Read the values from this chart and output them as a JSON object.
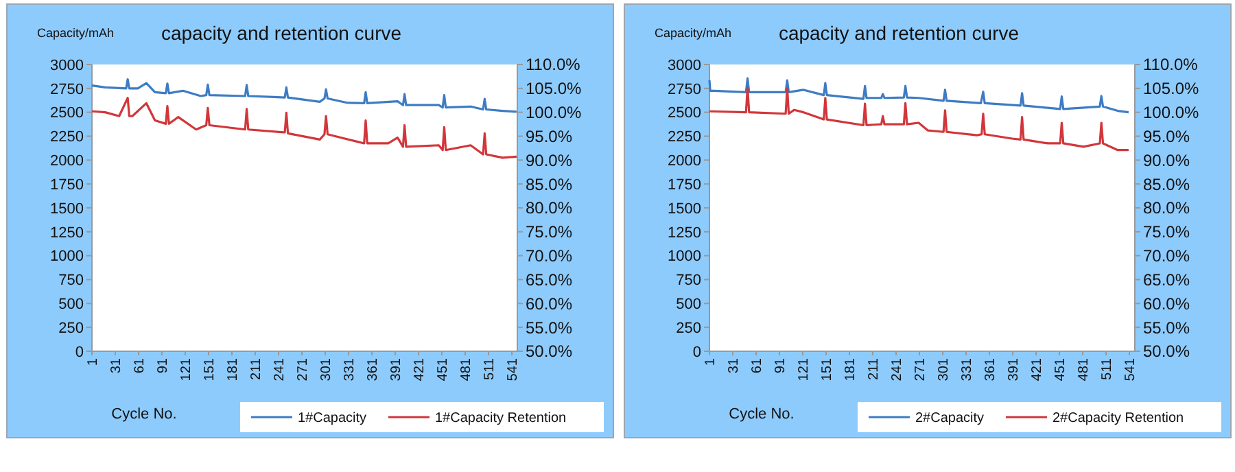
{
  "chart_data": [
    {
      "type": "line",
      "title": "capacity and retention curve",
      "ylabel": "Capacity/mAh",
      "xlabel": "Cycle No.",
      "xlim": [
        1,
        548
      ],
      "xticks": [
        1,
        31,
        61,
        91,
        121,
        151,
        181,
        211,
        241,
        271,
        301,
        331,
        361,
        391,
        421,
        451,
        481,
        511,
        541
      ],
      "ylim": [
        0,
        3000
      ],
      "yticks": [
        0,
        250,
        500,
        750,
        1000,
        1250,
        1500,
        1750,
        2000,
        2250,
        2500,
        2750,
        3000
      ],
      "y2lim": [
        50,
        110
      ],
      "y2ticks": [
        {
          "value": 50,
          "label": "50.0%"
        },
        {
          "value": 55,
          "label": "55.0%"
        },
        {
          "value": 60,
          "label": "60.0%"
        },
        {
          "value": 65,
          "label": "65.0%"
        },
        {
          "value": 70,
          "label": "70.0%"
        },
        {
          "value": 75,
          "label": "75.0%"
        },
        {
          "value": 80,
          "label": "80.0%"
        },
        {
          "value": 85,
          "label": "85.0%"
        },
        {
          "value": 90,
          "label": "90.0%"
        },
        {
          "value": 95,
          "label": "95.0%"
        },
        {
          "value": 100,
          "label": "100.0%"
        },
        {
          "value": 105,
          "label": "105.0%"
        },
        {
          "value": 110,
          "label": "110.0%"
        }
      ],
      "grid": false,
      "legend": "bottom right",
      "marker": "none",
      "line_style": "solid",
      "series": [
        {
          "name": "1#Capacity",
          "color": "#3d7cc4",
          "x": [
            1,
            18,
            45,
            47,
            49,
            60,
            71,
            82,
            96,
            98,
            100,
            118,
            141,
            148,
            150,
            152,
            198,
            200,
            202,
            235,
            249,
            251,
            253,
            294,
            300,
            302,
            304,
            329,
            351,
            353,
            355,
            394,
            401,
            403,
            405,
            447,
            452,
            454,
            456,
            488,
            504,
            506,
            508,
            529,
            547
          ],
          "values": [
            2780,
            2760,
            2750,
            2845,
            2750,
            2750,
            2805,
            2710,
            2700,
            2800,
            2700,
            2725,
            2670,
            2680,
            2790,
            2680,
            2670,
            2785,
            2670,
            2660,
            2655,
            2760,
            2655,
            2610,
            2645,
            2740,
            2645,
            2600,
            2595,
            2710,
            2595,
            2615,
            2575,
            2690,
            2575,
            2575,
            2550,
            2680,
            2550,
            2560,
            2530,
            2640,
            2530,
            2515,
            2505
          ]
        },
        {
          "name": "1#Capacity Retention",
          "color": "#d2363a",
          "axis": "y2",
          "x": [
            1,
            18,
            36,
            47,
            49,
            53,
            71,
            82,
            96,
            98,
            100,
            112,
            135,
            148,
            150,
            152,
            198,
            200,
            202,
            247,
            249,
            251,
            253,
            294,
            300,
            302,
            304,
            341,
            351,
            353,
            355,
            382,
            394,
            401,
            403,
            405,
            447,
            452,
            454,
            456,
            488,
            504,
            506,
            508,
            529,
            547
          ],
          "values": [
            100.2,
            100,
            99.2,
            103.0,
            99.2,
            99.2,
            101.9,
            98.3,
            97.6,
            101.3,
            97.6,
            99,
            96.4,
            97.3,
            100.9,
            97.3,
            96.4,
            100.7,
            96.4,
            95.8,
            95.8,
            99.9,
            95.6,
            94.3,
            95.4,
            99.2,
            95.4,
            93.9,
            93.5,
            98.3,
            93.5,
            93.5,
            94.7,
            92.8,
            97.3,
            92.8,
            93.1,
            92.1,
            96.9,
            92.1,
            93.1,
            91.2,
            95.6,
            91.2,
            90.5,
            90.7
          ]
        }
      ]
    },
    {
      "type": "line",
      "title": "capacity and retention curve",
      "ylabel": "Capacity/mAh",
      "xlabel": "Cycle No.",
      "xlim": [
        1,
        548
      ],
      "xticks": [
        1,
        31,
        61,
        91,
        121,
        151,
        181,
        211,
        241,
        271,
        301,
        331,
        361,
        391,
        421,
        451,
        481,
        511,
        541
      ],
      "ylim": [
        0,
        3000
      ],
      "yticks": [
        0,
        250,
        500,
        750,
        1000,
        1250,
        1500,
        1750,
        2000,
        2250,
        2500,
        2750,
        3000
      ],
      "y2lim": [
        50,
        110
      ],
      "y2ticks": [
        {
          "value": 50,
          "label": "50.0%"
        },
        {
          "value": 55,
          "label": "55.0%"
        },
        {
          "value": 60,
          "label": "60.0%"
        },
        {
          "value": 65,
          "label": "65.0%"
        },
        {
          "value": 70,
          "label": "70.0%"
        },
        {
          "value": 75,
          "label": "75.0%"
        },
        {
          "value": 80,
          "label": "80.0%"
        },
        {
          "value": 85,
          "label": "85.0%"
        },
        {
          "value": 90,
          "label": "90.0%"
        },
        {
          "value": 95,
          "label": "95.0%"
        },
        {
          "value": 100,
          "label": "100.0%"
        },
        {
          "value": 105,
          "label": "105.0%"
        },
        {
          "value": 110,
          "label": "110.0%"
        }
      ],
      "grid": false,
      "legend": "bottom right",
      "marker": "none",
      "line_style": "solid",
      "series": [
        {
          "name": "2#Capacity",
          "color": "#3d7cc4",
          "x": [
            1,
            2,
            7,
            48,
            50,
            52,
            99,
            101,
            103,
            122,
            148,
            150,
            152,
            199,
            201,
            203,
            222,
            224,
            226,
            251,
            253,
            255,
            270,
            302,
            304,
            306,
            350,
            353,
            355,
            401,
            403,
            405,
            452,
            454,
            456,
            503,
            505,
            507,
            526,
            540
          ],
          "values": [
            2835,
            2725,
            2725,
            2710,
            2855,
            2710,
            2710,
            2835,
            2710,
            2735,
            2680,
            2805,
            2680,
            2640,
            2775,
            2650,
            2650,
            2690,
            2650,
            2655,
            2775,
            2655,
            2650,
            2620,
            2735,
            2620,
            2595,
            2715,
            2595,
            2570,
            2700,
            2570,
            2535,
            2665,
            2535,
            2560,
            2670,
            2560,
            2515,
            2500
          ]
        },
        {
          "name": "2#Capacity Retention",
          "color": "#d2363a",
          "axis": "y2",
          "x": [
            1,
            48,
            50,
            52,
            99,
            101,
            103,
            110,
            122,
            148,
            150,
            152,
            199,
            201,
            203,
            222,
            224,
            226,
            251,
            253,
            255,
            270,
            282,
            302,
            304,
            306,
            345,
            351,
            353,
            355,
            390,
            401,
            403,
            405,
            436,
            452,
            454,
            456,
            482,
            503,
            505,
            507,
            526,
            540
          ],
          "values": [
            100.2,
            100,
            105.1,
            100,
            99.7,
            105.0,
            99.7,
            100.5,
            100,
            98.5,
            103.0,
            98.5,
            97.3,
            101.8,
            97.3,
            97.5,
            99.2,
            97.5,
            97.5,
            101.9,
            97.5,
            97.8,
            96.2,
            95.9,
            100.4,
            95.9,
            95.2,
            95.4,
            99.7,
            95.4,
            94.5,
            94.3,
            99,
            94.3,
            93.5,
            93.5,
            97.8,
            93.5,
            92.8,
            93.5,
            97.8,
            93.5,
            92.1,
            92.1
          ]
        }
      ]
    }
  ]
}
